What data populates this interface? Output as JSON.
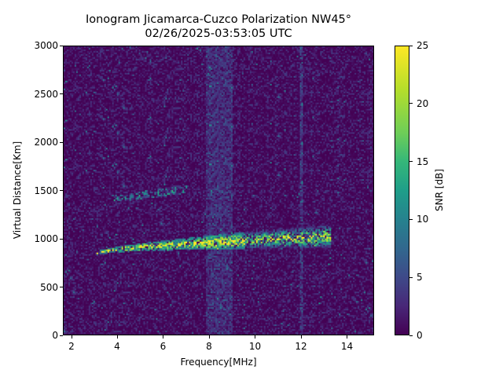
{
  "title_line1": "Ionogram Jicamarca-Cuzco Polarization NW45°",
  "title_line2": "02/26/2025-03:53:05 UTC",
  "chart_data": {
    "type": "heatmap",
    "title": "Ionogram Jicamarca-Cuzco Polarization NW45°\n02/26/2025-03:53:05 UTC",
    "xlabel": "Frequency[MHz]",
    "ylabel": "Virtual Distance[Km]",
    "colorbar_label": "SNR [dB]",
    "colormap": "viridis",
    "xlim": [
      1.6,
      15.2
    ],
    "ylim": [
      0,
      3000
    ],
    "clim": [
      0,
      25
    ],
    "x_ticks": [
      "2",
      "4",
      "6",
      "8",
      "10",
      "12",
      "14"
    ],
    "x_tick_values": [
      2,
      4,
      6,
      8,
      10,
      12,
      14
    ],
    "y_ticks": [
      "0",
      "500",
      "1000",
      "1500",
      "2000",
      "2500",
      "3000"
    ],
    "y_tick_values": [
      0,
      500,
      1000,
      1500,
      2000,
      2500,
      3000
    ],
    "colorbar_ticks": [
      "0",
      "5",
      "10",
      "15",
      "20",
      "25"
    ],
    "colorbar_tick_values": [
      0,
      5,
      10,
      15,
      20,
      25
    ],
    "grid": false,
    "features": [
      {
        "name": "F-layer echo trace",
        "freq_start_mhz": 3.0,
        "freq_end_mhz": 13.3,
        "distance_start_km": 850,
        "distance_end_km": 1050,
        "peak_snr_db": 25
      },
      {
        "name": "weak second trace",
        "freq_start_mhz": 3.7,
        "freq_end_mhz": 7.0,
        "distance_start_km": 1400,
        "distance_end_km": 1550,
        "peak_snr_db": 12
      },
      {
        "name": "interference band",
        "freq_start_mhz": 7.8,
        "freq_end_mhz": 9.0,
        "peak_snr_db": 6
      },
      {
        "name": "interference line",
        "freq_mhz": 12.0,
        "peak_snr_db": 8
      }
    ]
  }
}
